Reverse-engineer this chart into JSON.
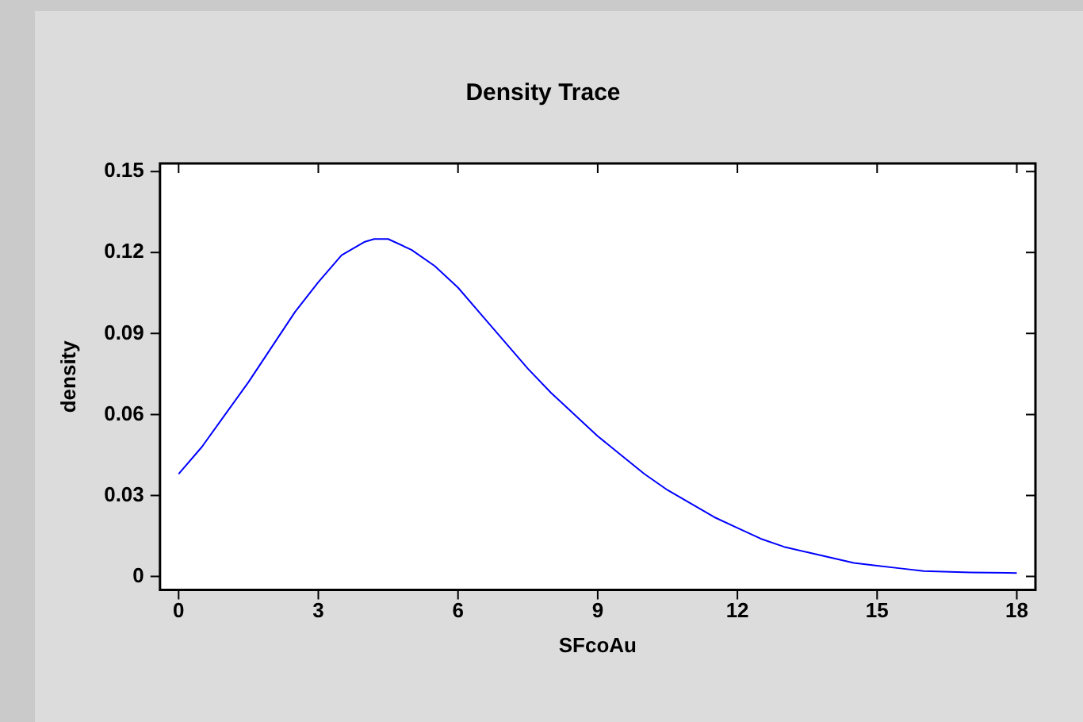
{
  "chart_data": {
    "type": "line",
    "title": "Density Trace",
    "xlabel": "SFcoAu",
    "ylabel": "density",
    "x": [
      0,
      0.5,
      1,
      1.5,
      2,
      2.5,
      3,
      3.5,
      4,
      4.2,
      4.5,
      5,
      5.5,
      6,
      6.5,
      7,
      7.5,
      8,
      8.5,
      9,
      9.5,
      10,
      10.5,
      11,
      11.5,
      12,
      12.5,
      13,
      13.5,
      14,
      14.5,
      15,
      15.5,
      16,
      17,
      18
    ],
    "series": [
      {
        "color": "#0000ff",
        "values": [
          0.038,
          0.048,
          0.06,
          0.072,
          0.085,
          0.098,
          0.109,
          0.119,
          0.124,
          0.125,
          0.125,
          0.121,
          0.115,
          0.107,
          0.097,
          0.087,
          0.077,
          0.068,
          0.06,
          0.052,
          0.045,
          0.038,
          0.032,
          0.027,
          0.022,
          0.018,
          0.014,
          0.011,
          0.009,
          0.007,
          0.005,
          0.004,
          0.003,
          0.002,
          0.0015,
          0.0013
        ]
      }
    ],
    "xlim": [
      -0.4,
      18.4
    ],
    "xticks": [
      0,
      3,
      6,
      9,
      12,
      15,
      18
    ],
    "ylim": [
      -0.005,
      0.153
    ],
    "yticks": [
      0,
      0.03,
      0.06,
      0.09,
      0.12,
      0.15
    ],
    "grid": false,
    "legend": false,
    "marker": "none",
    "line_style": "solid"
  }
}
